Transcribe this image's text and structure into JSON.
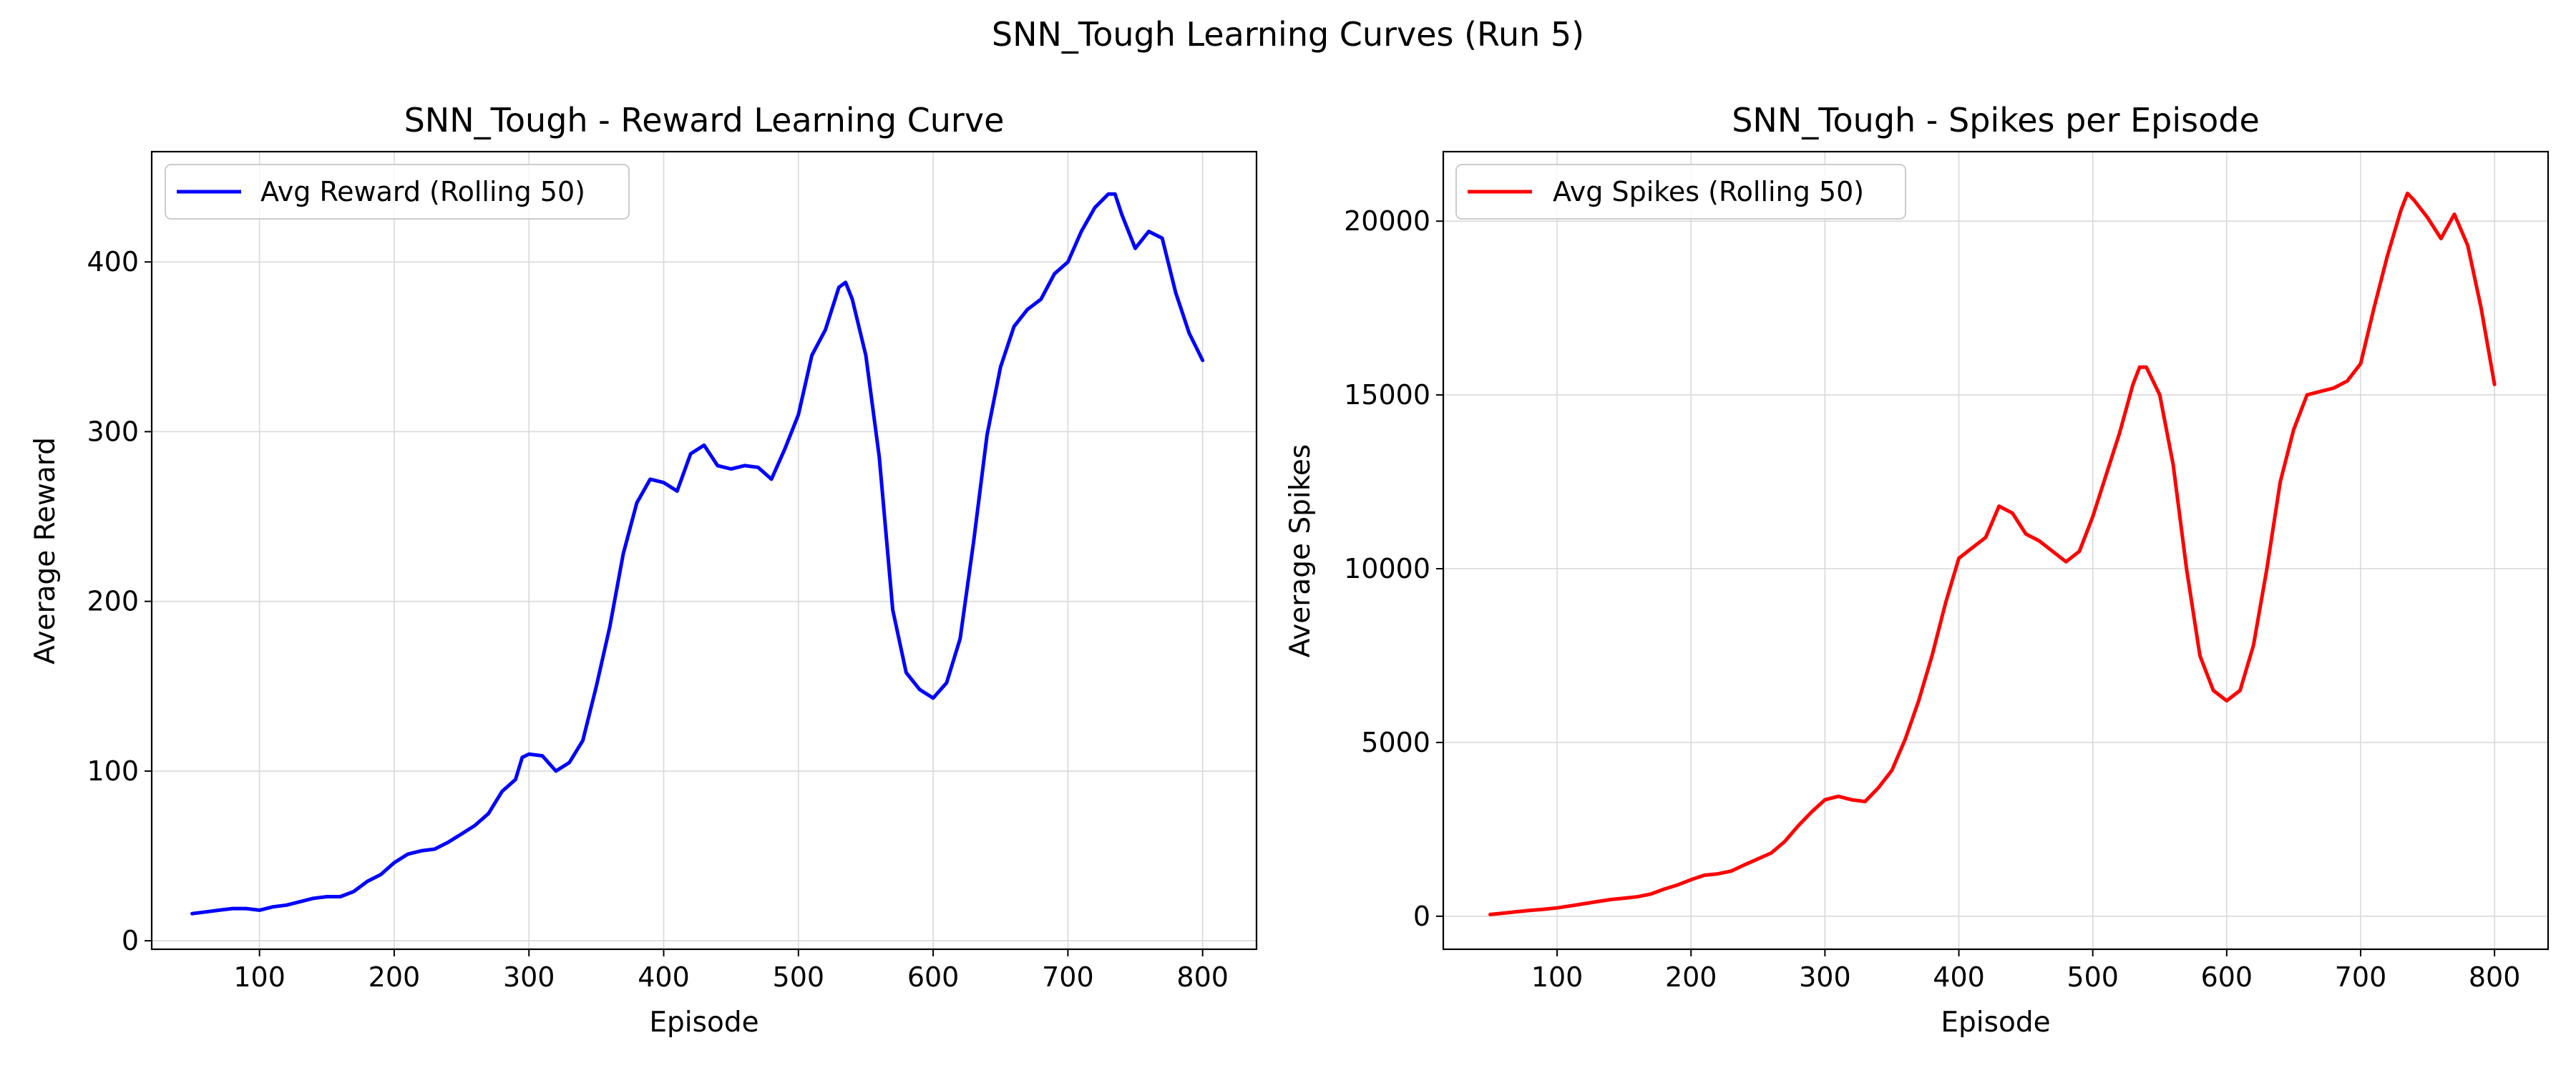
{
  "figure": {
    "suptitle": "SNN_Tough Learning Curves (Run 5)"
  },
  "chart_data": [
    {
      "type": "line",
      "title": "SNN_Tough - Reward Learning Curve",
      "xlabel": "Episode",
      "ylabel": "Average Reward",
      "xlim": [
        20,
        840
      ],
      "ylim": [
        -5,
        465
      ],
      "xticks": [
        100,
        200,
        300,
        400,
        500,
        600,
        700,
        800
      ],
      "yticks": [
        0,
        100,
        200,
        300,
        400
      ],
      "grid": true,
      "legend_position": "top-left",
      "series": [
        {
          "name": "Avg Reward (Rolling 50)",
          "color": "#0000ff",
          "x": [
            50,
            60,
            70,
            80,
            90,
            100,
            110,
            120,
            130,
            140,
            150,
            160,
            170,
            180,
            190,
            200,
            210,
            220,
            230,
            240,
            250,
            260,
            270,
            280,
            290,
            295,
            300,
            310,
            320,
            330,
            340,
            350,
            360,
            370,
            380,
            390,
            400,
            410,
            420,
            430,
            440,
            450,
            460,
            470,
            480,
            490,
            500,
            510,
            520,
            530,
            535,
            540,
            550,
            560,
            570,
            580,
            590,
            600,
            610,
            620,
            630,
            640,
            650,
            660,
            670,
            680,
            690,
            700,
            710,
            720,
            730,
            735,
            740,
            750,
            760,
            770,
            780,
            790,
            800
          ],
          "y": [
            16,
            17,
            18,
            19,
            19,
            18,
            20,
            21,
            23,
            25,
            26,
            26,
            29,
            35,
            39,
            46,
            51,
            53,
            54,
            58,
            63,
            68,
            75,
            88,
            95,
            108,
            110,
            109,
            100,
            105,
            118,
            150,
            185,
            228,
            258,
            272,
            270,
            265,
            287,
            292,
            280,
            278,
            280,
            279,
            272,
            290,
            310,
            345,
            360,
            385,
            388,
            378,
            345,
            285,
            195,
            158,
            148,
            143,
            152,
            178,
            235,
            298,
            338,
            362,
            372,
            378,
            393,
            400,
            418,
            432,
            440,
            440,
            428,
            408,
            418,
            414,
            382,
            358,
            342
          ]
        }
      ]
    },
    {
      "type": "line",
      "title": "SNN_Tough - Spikes per Episode",
      "xlabel": "Episode",
      "ylabel": "Average Spikes",
      "xlim": [
        15,
        840
      ],
      "ylim": [
        -950,
        22000
      ],
      "xticks": [
        100,
        200,
        300,
        400,
        500,
        600,
        700,
        800
      ],
      "yticks": [
        0,
        5000,
        10000,
        15000,
        20000
      ],
      "yticklabels": [
        "0",
        "5000",
        "10000",
        "15000",
        "20000"
      ],
      "grid": true,
      "legend_position": "top-left",
      "series": [
        {
          "name": "Avg Spikes (Rolling 50)",
          "color": "#ff0000",
          "x": [
            50,
            60,
            70,
            80,
            90,
            100,
            110,
            120,
            130,
            140,
            150,
            160,
            170,
            180,
            190,
            200,
            210,
            220,
            230,
            240,
            250,
            260,
            270,
            280,
            290,
            300,
            310,
            320,
            330,
            340,
            350,
            360,
            370,
            380,
            390,
            400,
            410,
            420,
            430,
            440,
            450,
            460,
            470,
            480,
            490,
            500,
            510,
            520,
            530,
            535,
            540,
            550,
            560,
            570,
            580,
            590,
            600,
            610,
            620,
            630,
            640,
            650,
            660,
            670,
            680,
            690,
            700,
            710,
            720,
            730,
            735,
            740,
            750,
            760,
            770,
            780,
            790,
            800
          ],
          "y": [
            50,
            90,
            130,
            170,
            200,
            240,
            300,
            360,
            420,
            480,
            520,
            560,
            640,
            780,
            900,
            1050,
            1180,
            1220,
            1300,
            1480,
            1650,
            1820,
            2150,
            2600,
            3000,
            3350,
            3450,
            3350,
            3300,
            3700,
            4200,
            5100,
            6200,
            7500,
            9000,
            10300,
            10600,
            10900,
            11800,
            11600,
            11000,
            10800,
            10500,
            10200,
            10500,
            11500,
            12700,
            13900,
            15300,
            15800,
            15800,
            15000,
            13000,
            10000,
            7500,
            6500,
            6200,
            6500,
            7800,
            10000,
            12500,
            14000,
            15000,
            15100,
            15200,
            15400,
            15900,
            17500,
            19000,
            20300,
            20800,
            20600,
            20100,
            19500,
            20200,
            19300,
            17500,
            15300
          ]
        }
      ]
    }
  ]
}
